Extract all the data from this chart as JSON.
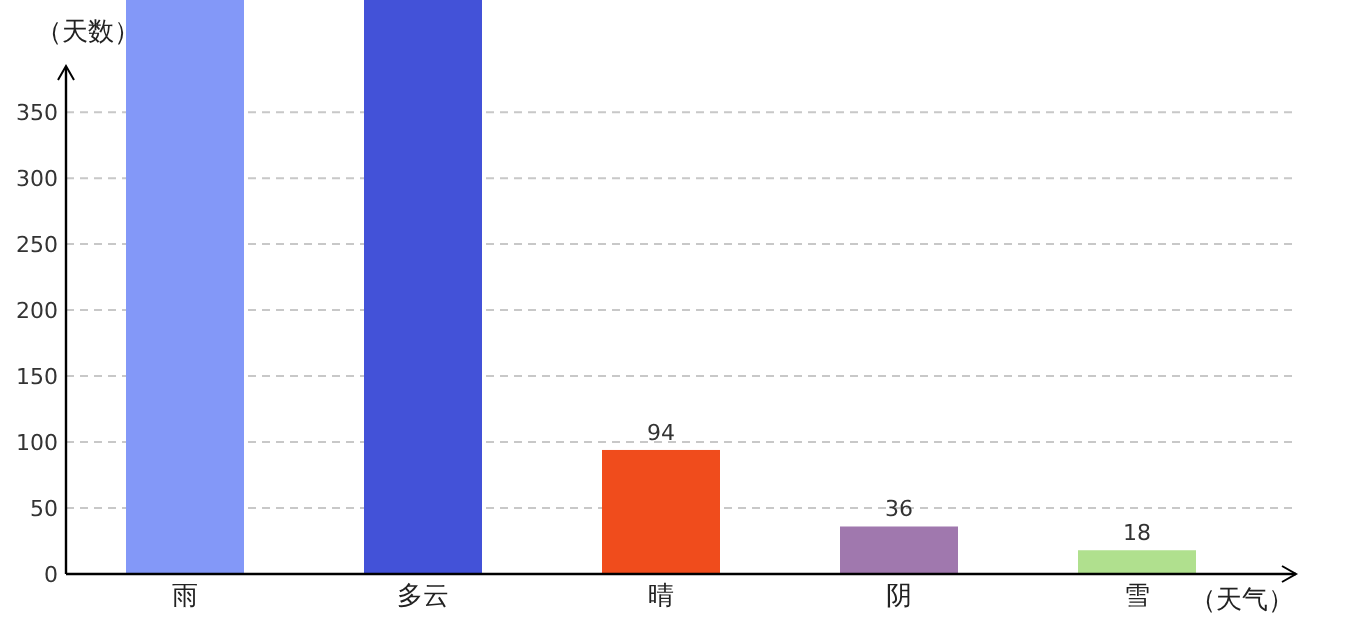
{
  "chart_data": {
    "type": "bar",
    "xlabel": "（天气）",
    "ylabel": "（天数）",
    "categories": [
      "雨",
      "多云",
      "晴",
      "阴",
      "雪"
    ],
    "values": [
      435,
      435,
      94,
      36,
      18
    ],
    "colors": [
      "#8398f8",
      "#4352d8",
      "#f04c1c",
      "#a078ae",
      "#b0e08e"
    ],
    "value_labels": [
      null,
      null,
      "94",
      "36",
      "18"
    ],
    "ylim": [
      0,
      435
    ],
    "yticks": [
      0,
      50,
      100,
      150,
      200,
      250,
      300,
      350
    ],
    "grid": "y"
  }
}
